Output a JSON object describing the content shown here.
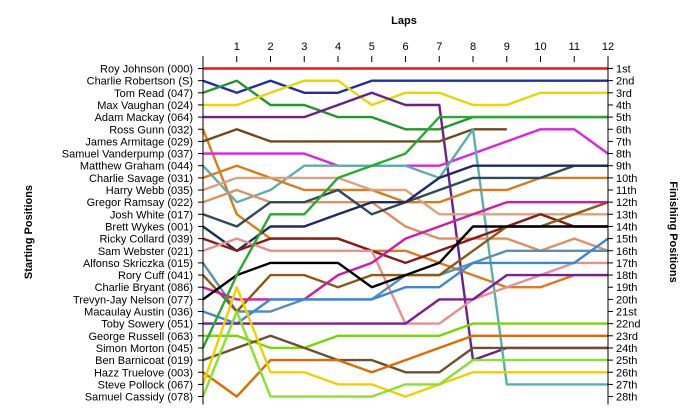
{
  "chart_data": {
    "type": "line",
    "title": "",
    "xlabel": "Laps",
    "ylabel_left": "Starting Positions",
    "ylabel_right": "Finishing Positions",
    "x_ticks": [
      "1",
      "2",
      "3",
      "4",
      "5",
      "6",
      "7",
      "8",
      "9",
      "10",
      "11",
      "12"
    ],
    "finishing_labels": [
      "1st",
      "2nd",
      "3rd",
      "4th",
      "5th",
      "6th",
      "7th",
      "8th",
      "9th",
      "10th",
      "11th",
      "12th",
      "13th",
      "14th",
      "15th",
      "16th",
      "17th",
      "18th",
      "19th",
      "20th",
      "21st",
      "22nd",
      "23rd",
      "24th",
      "25th",
      "26th",
      "27th",
      "28th"
    ],
    "grid": false,
    "series": [
      {
        "name": "Roy Johnson (000)",
        "color": "#dd1c1c",
        "values": [
          1,
          1,
          1,
          1,
          1,
          1,
          1,
          1,
          1,
          1,
          1,
          1,
          1
        ]
      },
      {
        "name": "Charlie Robertson (S)",
        "color": "#1f2ea8",
        "values": [
          2,
          3,
          2,
          3,
          3,
          2,
          2,
          2,
          2,
          2,
          2,
          2,
          2
        ]
      },
      {
        "name": "Tom Read (047)",
        "color": "#22962a",
        "values": [
          3,
          2,
          4,
          4,
          5,
          5,
          6,
          6,
          5,
          5,
          5,
          5,
          5
        ]
      },
      {
        "name": "Max Vaughan (024)",
        "color": "#e8d800",
        "values": [
          4,
          4,
          3,
          2,
          2,
          4,
          3,
          3,
          4,
          4,
          3,
          3,
          3
        ]
      },
      {
        "name": "Adam Mackay (064)",
        "color": "#6b1f8a",
        "values": [
          5,
          5,
          5,
          5,
          4,
          3,
          4,
          4,
          25,
          24,
          24,
          24,
          24
        ]
      },
      {
        "name": "Ross Gunn (032)",
        "color": "#e07a18",
        "values": [
          6,
          13,
          15,
          15,
          15,
          16,
          16,
          17,
          18,
          19,
          19,
          18,
          18
        ]
      },
      {
        "name": "James Armitage (029)",
        "color": "#6e4a1c",
        "values": [
          7,
          6,
          7,
          7,
          7,
          7,
          7,
          7,
          6,
          6,
          null,
          null,
          null
        ]
      },
      {
        "name": "Samuel Vanderpump (037)",
        "color": "#e020e0",
        "values": [
          8,
          8,
          8,
          8,
          9,
          9,
          9,
          9,
          8,
          7,
          6,
          6,
          8
        ]
      },
      {
        "name": "Matthew Graham (044)",
        "color": "#5ab0b0",
        "values": [
          9,
          12,
          11,
          9,
          9,
          9,
          9,
          10,
          6,
          27,
          27,
          27,
          27
        ]
      },
      {
        "name": "Charlie Savage (031)",
        "color": "#d08020",
        "values": [
          10,
          9,
          10,
          11,
          11,
          11,
          12,
          12,
          11,
          11,
          10,
          10,
          10
        ]
      },
      {
        "name": "Harry Webb (035)",
        "color": "#e0a080",
        "values": [
          11,
          10,
          10,
          10,
          10,
          11,
          11,
          13,
          13,
          13,
          13,
          13,
          13
        ]
      },
      {
        "name": "Gregor Ramsay (022)",
        "color": "#e09060",
        "values": [
          12,
          11,
          12,
          12,
          12,
          12,
          14,
          15,
          15,
          15,
          16,
          15,
          16
        ]
      },
      {
        "name": "Josh White (017)",
        "color": "#2e4a5e",
        "values": [
          13,
          14,
          12,
          12,
          11,
          13,
          12,
          11,
          10,
          10,
          10,
          9,
          9
        ]
      },
      {
        "name": "Brett Wykes (001)",
        "color": "#1f2a60",
        "values": [
          14,
          16,
          14,
          14,
          13,
          12,
          12,
          10,
          9,
          9,
          9,
          9,
          9
        ]
      },
      {
        "name": "Ricky Collard (039)",
        "color": "#8a1a1a",
        "values": [
          15,
          16,
          15,
          15,
          15,
          16,
          17,
          16,
          15,
          14,
          13,
          14,
          14
        ]
      },
      {
        "name": "Sam Webster (021)",
        "color": "#e89090",
        "values": [
          16,
          15,
          16,
          16,
          16,
          16,
          22,
          22,
          20,
          19,
          18,
          17,
          17
        ]
      },
      {
        "name": "Alfonso Skriczka (015)",
        "color": "#5a8fb5",
        "values": [
          17,
          21,
          21,
          20,
          20,
          20,
          18,
          18,
          17,
          16,
          16,
          16,
          16
        ]
      },
      {
        "name": "Rory Cuff (041)",
        "color": "#8b5a14",
        "values": [
          18,
          21,
          18,
          18,
          19,
          18,
          18,
          18,
          16,
          14,
          14,
          13,
          12
        ]
      },
      {
        "name": "Charlie Bryant (086)",
        "color": "#d01aa8",
        "values": [
          19,
          20,
          20,
          20,
          18,
          17,
          15,
          14,
          13,
          12,
          12,
          12,
          12
        ]
      },
      {
        "name": "Trevyn-Jay Nelson (077)",
        "color": "#000000",
        "values": [
          20,
          18,
          17,
          17,
          17,
          19,
          18,
          17,
          14,
          14,
          14,
          14,
          14
        ]
      },
      {
        "name": "Macaulay Austin (036)",
        "color": "#3a88d8",
        "values": [
          21,
          22,
          20,
          20,
          20,
          20,
          19,
          19,
          17,
          17,
          17,
          17,
          15
        ]
      },
      {
        "name": "Toby Sowery (051)",
        "color": "#7a1f96",
        "values": [
          22,
          22,
          22,
          22,
          22,
          22,
          22,
          20,
          20,
          18,
          18,
          18,
          18
        ]
      },
      {
        "name": "George Russell (063)",
        "color": "#7ad800",
        "values": [
          23,
          23,
          24,
          24,
          23,
          23,
          23,
          23,
          22,
          22,
          22,
          22,
          22
        ]
      },
      {
        "name": "Simon Morton (045)",
        "color": "#2aa832",
        "values": [
          24,
          18,
          13,
          13,
          10,
          9,
          8,
          5,
          5,
          5,
          5,
          5,
          5
        ]
      },
      {
        "name": "Ben Barnicoat (019)",
        "color": "#6e5030",
        "values": [
          25,
          24,
          23,
          24,
          25,
          25,
          26,
          26,
          24,
          24,
          24,
          24,
          24
        ]
      },
      {
        "name": "Hazz Truelove (003)",
        "color": "#e06a00",
        "values": [
          26,
          28,
          25,
          25,
          25,
          26,
          25,
          24,
          23,
          23,
          23,
          23,
          23
        ]
      },
      {
        "name": "Steve Pollock (067)",
        "color": "#f0d000",
        "values": [
          27,
          19,
          26,
          26,
          27,
          27,
          28,
          27,
          26,
          26,
          26,
          26,
          26
        ]
      },
      {
        "name": "Samuel Cassidy (078)",
        "color": "#88e030",
        "values": [
          28,
          21,
          28,
          28,
          28,
          28,
          27,
          27,
          25,
          25,
          25,
          25,
          25
        ]
      }
    ]
  }
}
